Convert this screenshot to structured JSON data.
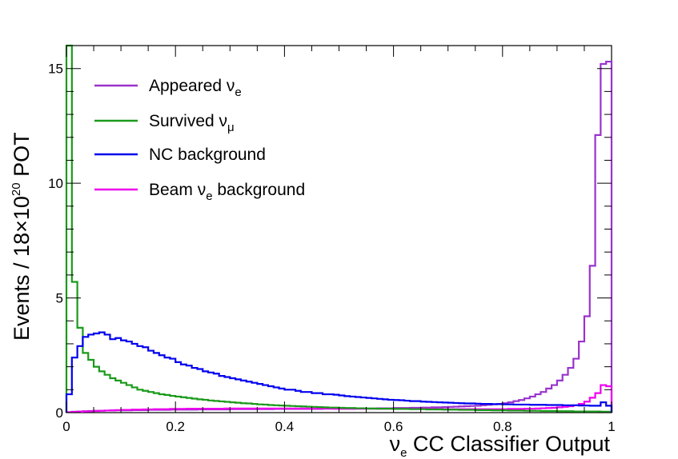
{
  "chart_data": {
    "type": "histogram-step",
    "xlabel": {
      "symbol": "ν",
      "sub": "e",
      "text": "CC Classifier Output"
    },
    "ylabel": {
      "prefix": "Events / 18×10",
      "sup": "20",
      "suffix": " POT"
    },
    "xlim": [
      0,
      1
    ],
    "ylim": [
      0,
      16
    ],
    "bin_width": 0.01,
    "x_ticks": [
      0,
      0.2,
      0.4,
      0.6,
      0.8,
      1
    ],
    "x_tick_labels": [
      "0",
      "0.2",
      "0.4",
      "0.6",
      "0.8",
      "1"
    ],
    "y_ticks": [
      0,
      5,
      10,
      15
    ],
    "y_tick_labels": [
      "0",
      "5",
      "10",
      "15"
    ],
    "legend": [
      {
        "key": "appeared",
        "label": "Appeared ",
        "symbol": "ν",
        "sub": "e",
        "suffix": "",
        "color": "#9932cc"
      },
      {
        "key": "survived",
        "label": "Survived ",
        "symbol": "ν",
        "sub": "μ",
        "suffix": "",
        "color": "#1a9a1a"
      },
      {
        "key": "nc",
        "label": "NC background",
        "symbol": "",
        "sub": "",
        "suffix": "",
        "color": "#0000ee"
      },
      {
        "key": "beam",
        "label": "Beam ",
        "symbol": "ν",
        "sub": "e",
        "suffix": " background",
        "color": "#ee00ee"
      }
    ],
    "series": [
      {
        "name": "Survived νμ",
        "key": "survived",
        "color": "#1a9a1a",
        "values": [
          16.0,
          5.7,
          3.7,
          2.6,
          2.3,
          2.0,
          1.8,
          1.65,
          1.5,
          1.4,
          1.3,
          1.2,
          1.1,
          1.0,
          0.95,
          0.9,
          0.85,
          0.8,
          0.77,
          0.73,
          0.7,
          0.67,
          0.64,
          0.61,
          0.58,
          0.56,
          0.53,
          0.51,
          0.49,
          0.47,
          0.45,
          0.43,
          0.41,
          0.4,
          0.38,
          0.36,
          0.35,
          0.33,
          0.32,
          0.31,
          0.3,
          0.29,
          0.28,
          0.27,
          0.26,
          0.25,
          0.24,
          0.23,
          0.22,
          0.22,
          0.21,
          0.2,
          0.2,
          0.19,
          0.19,
          0.18,
          0.18,
          0.17,
          0.17,
          0.17,
          0.16,
          0.16,
          0.16,
          0.15,
          0.15,
          0.15,
          0.14,
          0.14,
          0.14,
          0.13,
          0.13,
          0.13,
          0.12,
          0.12,
          0.12,
          0.11,
          0.11,
          0.11,
          0.1,
          0.1,
          0.1,
          0.09,
          0.09,
          0.09,
          0.08,
          0.08,
          0.08,
          0.07,
          0.07,
          0.07,
          0.06,
          0.06,
          0.06,
          0.05,
          0.05,
          0.05,
          0.05,
          0.05,
          0.04,
          0.04
        ]
      },
      {
        "name": "NC background",
        "key": "nc",
        "color": "#0000ee",
        "values": [
          0.8,
          2.4,
          2.9,
          3.3,
          3.4,
          3.45,
          3.5,
          3.4,
          3.2,
          3.25,
          3.15,
          3.1,
          3.0,
          2.9,
          2.85,
          2.7,
          2.6,
          2.5,
          2.4,
          2.35,
          2.2,
          2.1,
          2.05,
          1.95,
          1.9,
          1.8,
          1.75,
          1.7,
          1.6,
          1.55,
          1.5,
          1.45,
          1.4,
          1.35,
          1.3,
          1.25,
          1.2,
          1.15,
          1.1,
          1.05,
          1.0,
          1.0,
          0.95,
          0.9,
          0.9,
          0.85,
          0.85,
          0.8,
          0.8,
          0.78,
          0.75,
          0.72,
          0.7,
          0.68,
          0.66,
          0.64,
          0.62,
          0.6,
          0.58,
          0.56,
          0.55,
          0.54,
          0.52,
          0.5,
          0.5,
          0.48,
          0.47,
          0.46,
          0.45,
          0.44,
          0.43,
          0.42,
          0.41,
          0.4,
          0.4,
          0.39,
          0.38,
          0.38,
          0.37,
          0.37,
          0.36,
          0.36,
          0.35,
          0.35,
          0.35,
          0.34,
          0.34,
          0.34,
          0.33,
          0.33,
          0.33,
          0.32,
          0.32,
          0.32,
          0.31,
          0.31,
          0.3,
          0.3,
          0.45,
          0.3
        ]
      },
      {
        "name": "Appeared νe",
        "key": "appeared",
        "color": "#9932cc",
        "values": [
          0.02,
          0.04,
          0.05,
          0.06,
          0.07,
          0.08,
          0.08,
          0.09,
          0.09,
          0.1,
          0.1,
          0.1,
          0.11,
          0.11,
          0.11,
          0.12,
          0.12,
          0.12,
          0.12,
          0.13,
          0.13,
          0.13,
          0.13,
          0.13,
          0.14,
          0.14,
          0.14,
          0.14,
          0.14,
          0.14,
          0.15,
          0.15,
          0.15,
          0.15,
          0.15,
          0.15,
          0.15,
          0.15,
          0.16,
          0.16,
          0.16,
          0.16,
          0.16,
          0.16,
          0.16,
          0.16,
          0.16,
          0.17,
          0.17,
          0.17,
          0.17,
          0.17,
          0.17,
          0.18,
          0.18,
          0.18,
          0.18,
          0.19,
          0.19,
          0.19,
          0.2,
          0.2,
          0.2,
          0.21,
          0.21,
          0.22,
          0.22,
          0.23,
          0.23,
          0.24,
          0.25,
          0.26,
          0.27,
          0.28,
          0.29,
          0.3,
          0.32,
          0.34,
          0.36,
          0.38,
          0.41,
          0.45,
          0.5,
          0.55,
          0.62,
          0.7,
          0.8,
          0.9,
          1.05,
          1.2,
          1.4,
          1.65,
          1.95,
          2.35,
          3.1,
          4.2,
          6.4,
          12.1,
          15.2,
          15.3
        ]
      },
      {
        "name": "Beam νe background",
        "key": "beam",
        "color": "#ee00ee",
        "values": [
          0.02,
          0.03,
          0.04,
          0.05,
          0.06,
          0.07,
          0.08,
          0.09,
          0.1,
          0.11,
          0.12,
          0.12,
          0.13,
          0.13,
          0.14,
          0.14,
          0.15,
          0.15,
          0.15,
          0.16,
          0.16,
          0.16,
          0.17,
          0.17,
          0.17,
          0.17,
          0.17,
          0.17,
          0.17,
          0.18,
          0.18,
          0.18,
          0.18,
          0.18,
          0.18,
          0.18,
          0.18,
          0.18,
          0.18,
          0.18,
          0.18,
          0.18,
          0.18,
          0.18,
          0.18,
          0.18,
          0.18,
          0.18,
          0.18,
          0.17,
          0.17,
          0.17,
          0.17,
          0.17,
          0.17,
          0.17,
          0.17,
          0.17,
          0.17,
          0.17,
          0.16,
          0.16,
          0.16,
          0.16,
          0.16,
          0.16,
          0.16,
          0.16,
          0.15,
          0.15,
          0.15,
          0.15,
          0.15,
          0.15,
          0.15,
          0.15,
          0.15,
          0.15,
          0.15,
          0.15,
          0.15,
          0.16,
          0.16,
          0.16,
          0.17,
          0.17,
          0.18,
          0.19,
          0.2,
          0.21,
          0.23,
          0.25,
          0.28,
          0.32,
          0.38,
          0.48,
          0.65,
          0.85,
          1.2,
          1.15
        ]
      }
    ]
  }
}
